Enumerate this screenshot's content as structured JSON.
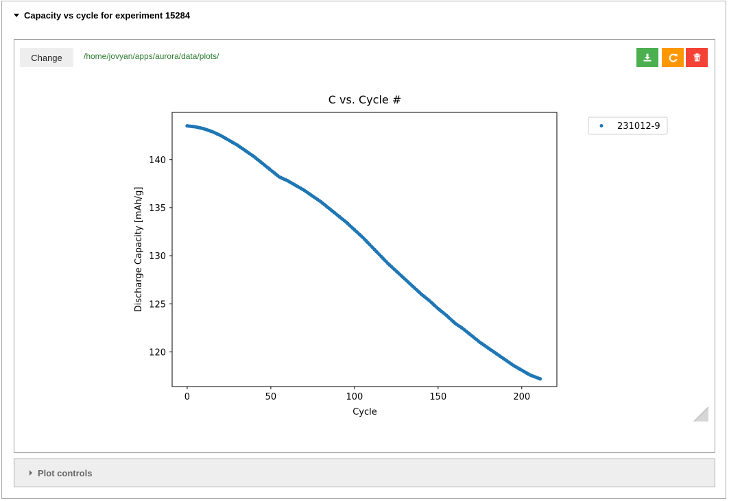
{
  "header": {
    "title": "Capacity vs cycle for experiment 15284"
  },
  "toolbar": {
    "change_label": "Change",
    "path": "/home/jovyan/apps/aurora/data/plots/",
    "download_icon": "download-icon",
    "refresh_icon": "refresh-icon",
    "delete_icon": "trash-icon",
    "colors": {
      "download": "#4caf50",
      "refresh": "#ff9800",
      "delete": "#f44336"
    }
  },
  "plot_controls": {
    "label": "Plot controls"
  },
  "chart_data": {
    "type": "scatter",
    "title": "C vs. Cycle #",
    "xlabel": "Cycle",
    "ylabel": "Discharge Capacity [mAh/g]",
    "xlim": [
      -9,
      221
    ],
    "ylim": [
      116.4,
      144.9
    ],
    "xticks": [
      0,
      50,
      100,
      150,
      200
    ],
    "yticks": [
      120,
      125,
      130,
      135,
      140
    ],
    "grid": false,
    "legend_position": "outside-right",
    "color": "#1f77b4",
    "series": [
      {
        "name": "231012-9",
        "x_start": 0,
        "x_end": 211,
        "x_step": 1,
        "profile_x": [
          0,
          5,
          10,
          15,
          20,
          25,
          30,
          35,
          40,
          45,
          50,
          55,
          60,
          65,
          70,
          75,
          80,
          85,
          90,
          95,
          100,
          105,
          110,
          115,
          120,
          125,
          130,
          135,
          140,
          145,
          150,
          155,
          160,
          165,
          170,
          175,
          180,
          185,
          190,
          195,
          200,
          205,
          211
        ],
        "profile_y": [
          143.5,
          143.4,
          143.2,
          142.9,
          142.5,
          142.0,
          141.5,
          140.9,
          140.3,
          139.6,
          138.9,
          138.2,
          137.8,
          137.3,
          136.8,
          136.2,
          135.6,
          134.9,
          134.2,
          133.5,
          132.7,
          131.9,
          131.0,
          130.1,
          129.2,
          128.4,
          127.6,
          126.8,
          126.0,
          125.3,
          124.5,
          123.8,
          123.0,
          122.4,
          121.7,
          121.0,
          120.4,
          119.8,
          119.2,
          118.6,
          118.1,
          117.6,
          117.2
        ]
      }
    ]
  }
}
